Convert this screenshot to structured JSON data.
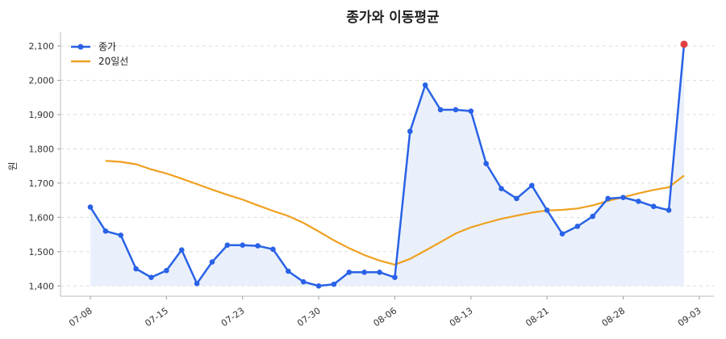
{
  "chart_data": {
    "type": "line",
    "title": "종가와 이동평균",
    "xlabel": "",
    "ylabel": "원",
    "ylim": [
      1370,
      2140
    ],
    "yticks": [
      1400,
      1500,
      1600,
      1700,
      1800,
      1900,
      2000,
      2100
    ],
    "ytick_labels": [
      "1,400",
      "1,500",
      "1,600",
      "1,700",
      "1,800",
      "1,900",
      "2,000",
      "2,100"
    ],
    "xtick_labels": [
      "07-08",
      "07-15",
      "07-23",
      "07-30",
      "08-06",
      "08-13",
      "08-21",
      "08-28",
      "09-03"
    ],
    "xtick_indices": [
      0,
      5,
      10,
      15,
      20,
      25,
      30,
      35,
      40
    ],
    "legend_position": "top-left",
    "grid": true,
    "colors": {
      "close": "#2962e6",
      "ma": "#f0a020",
      "fill": "#e8eefb",
      "last_point": "#e04040"
    },
    "series": [
      {
        "name": "종가",
        "values": [
          1630,
          1560,
          1548,
          1450,
          1425,
          1445,
          1505,
          1407,
          1470,
          1519,
          1519,
          1517,
          1507,
          1443,
          1412,
          1400,
          1405,
          1440,
          1440,
          1440,
          1425,
          1851,
          1986,
          1914,
          1914,
          1910,
          1757,
          1684,
          1655,
          1693,
          1621,
          1552,
          1574,
          1603,
          1655,
          1658,
          1647,
          1632,
          1621,
          2105
        ]
      },
      {
        "name": "20일선",
        "values": [
          1765,
          1762,
          1755,
          1740,
          1728,
          1713,
          1697,
          1681,
          1666,
          1652,
          1635,
          1619,
          1604,
          1584,
          1559,
          1533,
          1510,
          1490,
          1474,
          1462,
          1479,
          1503,
          1528,
          1553,
          1571,
          1584,
          1596,
          1605,
          1614,
          1620,
          1622,
          1626,
          1635,
          1648,
          1659,
          1670,
          1680,
          1688,
          1722
        ]
      }
    ]
  }
}
